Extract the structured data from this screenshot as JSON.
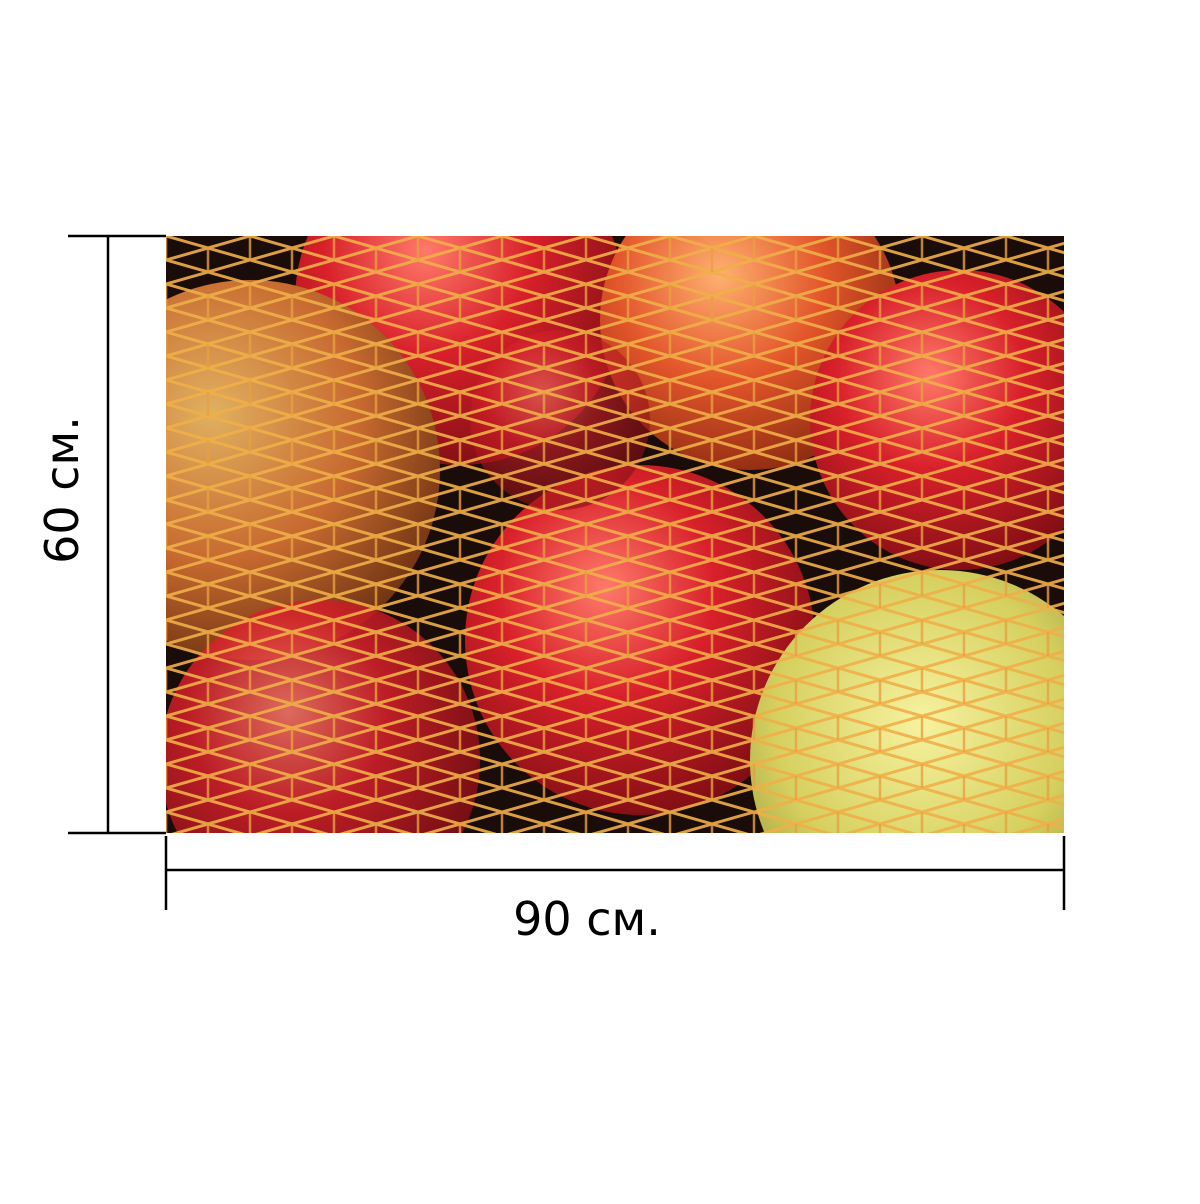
{
  "width_label": "90 см.",
  "height_label": "60 см."
}
